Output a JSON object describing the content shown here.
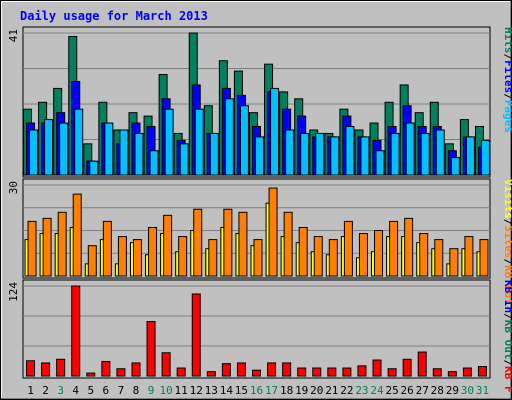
{
  "colors": {
    "background": "#C0C0C0",
    "hits": "#00805C",
    "files": "#0000FF",
    "pages": "#00C0FF",
    "visits": "#FFFF00",
    "sites": "#FF8000",
    "kb": "#FF0000",
    "title": "#0000FF",
    "weekend_day": "#00805C",
    "weekday_day": "#000000"
  },
  "chart_data": {
    "type": "bar",
    "title": "Daily usage for March 2013",
    "categories": [
      "1",
      "2",
      "3",
      "4",
      "5",
      "6",
      "7",
      "8",
      "9",
      "10",
      "11",
      "12",
      "13",
      "14",
      "15",
      "16",
      "17",
      "18",
      "19",
      "20",
      "21",
      "22",
      "23",
      "24",
      "25",
      "26",
      "27",
      "28",
      "29",
      "30",
      "31"
    ],
    "weekend_days": [
      "3",
      "9",
      "10",
      "16",
      "17",
      "23",
      "24",
      "30",
      "31"
    ],
    "panels": [
      {
        "ylim": [
          0,
          41
        ],
        "ymax_label": "41",
        "axis_legend": [
          {
            "text": "Hits",
            "color": "#00805C"
          },
          {
            "text": "/",
            "color": "#000000"
          },
          {
            "text": "Files",
            "color": "#0000FF"
          },
          {
            "text": "/",
            "color": "#000000"
          },
          {
            "text": "Pages",
            "color": "#00C0FF"
          }
        ],
        "series": [
          {
            "name": "Hits",
            "color": "#00805C",
            "values": [
              19,
              21,
              25,
              40,
              9,
              21,
              13,
              18,
              17,
              29,
              12,
              41,
              20,
              33,
              30,
              18,
              32,
              24,
              22,
              13,
              12,
              19,
              13,
              15,
              21,
              26,
              18,
              21,
              9,
              16,
              14
            ]
          },
          {
            "name": "Files",
            "color": "#0000FF",
            "values": [
              15,
              15,
              18,
              27,
              4,
              15,
              9,
              15,
              14,
              22,
              10,
              26,
              12,
              25,
              23,
              14,
              24,
              19,
              17,
              11,
              11,
              17,
              11,
              10,
              14,
              20,
              14,
              14,
              7,
              11,
              8
            ]
          },
          {
            "name": "Pages",
            "color": "#00C0FF",
            "values": [
              13,
              16,
              15,
              19,
              4,
              15,
              13,
              12,
              7,
              19,
              9,
              19,
              12,
              22,
              20,
              11,
              25,
              13,
              12,
              12,
              11,
              14,
              11,
              7,
              12,
              15,
              12,
              13,
              5,
              11,
              10
            ]
          }
        ]
      },
      {
        "ylim": [
          0,
          30
        ],
        "ymax_label": "30",
        "axis_legend": [
          {
            "text": "Visits",
            "color": "#FFFF00"
          },
          {
            "text": "/",
            "color": "#000000"
          },
          {
            "text": "Sites",
            "color": "#FF8000"
          },
          {
            "text": "/",
            "color": "#000000"
          },
          {
            "text": "KB Out",
            "color": "#FF8000"
          }
        ],
        "series": [
          {
            "name": "Visits",
            "color": "#FFFF00",
            "values": [
              12,
              14,
              14,
              16,
              4,
              12,
              4,
              11,
              7,
              14,
              8,
              15,
              9,
              16,
              14,
              10,
              24,
              13,
              11,
              8,
              7,
              13,
              6,
              8,
              13,
              13,
              11,
              9,
              4,
              9,
              8
            ]
          },
          {
            "name": "Sites",
            "color": "#FF8000",
            "values": [
              18,
              19,
              21,
              27,
              10,
              18,
              13,
              12,
              16,
              20,
              13,
              22,
              12,
              22,
              21,
              12,
              29,
              21,
              16,
              13,
              12,
              18,
              14,
              15,
              18,
              19,
              14,
              12,
              9,
              13,
              12
            ]
          }
        ]
      },
      {
        "ylim": [
          0,
          124
        ],
        "ymax_label": "124",
        "axis_legend": [
          {
            "text": "KB In",
            "color": "#0000FF"
          },
          {
            "text": "/",
            "color": "#000000"
          },
          {
            "text": "KB Out",
            "color": "#00805C"
          },
          {
            "text": "/",
            "color": "#000000"
          },
          {
            "text": "KB F",
            "color": "#FF0000"
          }
        ],
        "series": [
          {
            "name": "KB F",
            "color": "#FF0000",
            "values": [
              21,
              18,
              23,
              124,
              4,
              20,
              10,
              18,
              75,
              32,
              11,
              113,
              6,
              17,
              18,
              8,
              18,
              18,
              11,
              11,
              11,
              11,
              14,
              22,
              10,
              23,
              33,
              10,
              6,
              11,
              13
            ]
          }
        ]
      }
    ]
  }
}
